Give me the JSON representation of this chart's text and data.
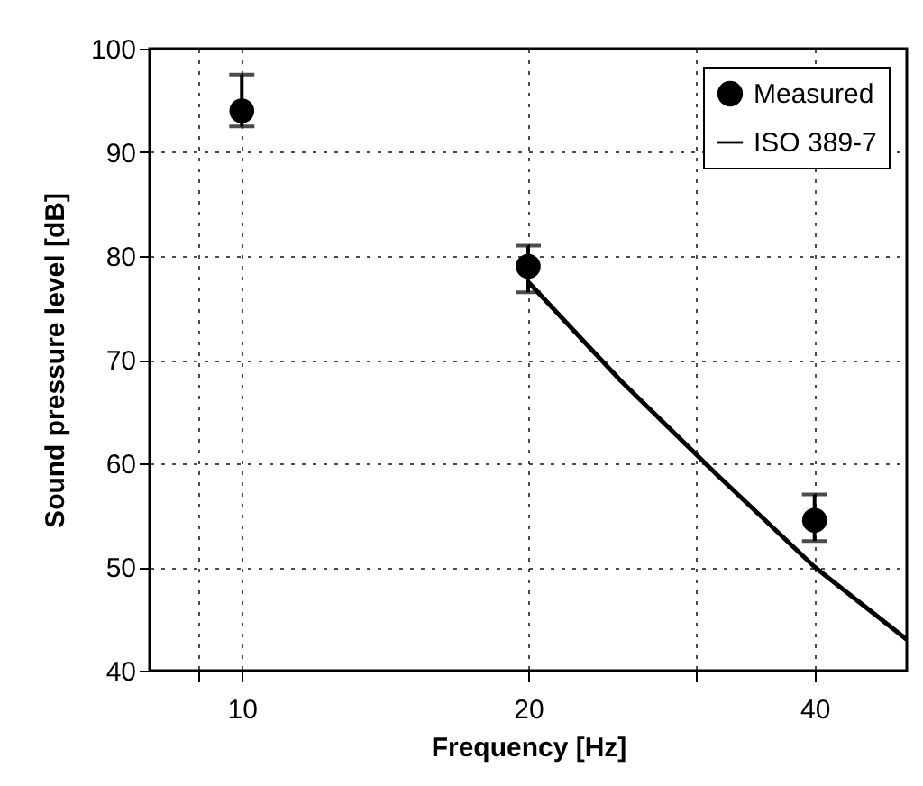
{
  "chart_data": {
    "type": "scatter",
    "xlabel": "Frequency [Hz]",
    "ylabel": "Sound pressure level [dB]",
    "log": "x",
    "xlim": [
      8,
      50
    ],
    "xticks": [
      {
        "value": 9,
        "label": null
      },
      10,
      20,
      {
        "value": 30,
        "label": null
      },
      40
    ],
    "ylim": [
      40,
      100
    ],
    "yticks": [
      40,
      50,
      60,
      70,
      80,
      90,
      100
    ],
    "grid": true,
    "legend": "top right",
    "series": [
      {
        "name": "Measured",
        "type": "scatter",
        "color": "#000000",
        "marker": "circle",
        "x": [
          10,
          20,
          40
        ],
        "values": [
          94,
          79,
          54.5
        ],
        "errors": [
          [
            92.5,
            97.5
          ],
          [
            76.5,
            81
          ],
          [
            52.5,
            57
          ]
        ]
      },
      {
        "name": "ISO 389-7",
        "type": "line",
        "color": "#000000",
        "line_style": "solid",
        "x": [
          20,
          25,
          31.5,
          40,
          50
        ],
        "values": [
          77.5,
          68,
          59,
          50,
          43
        ]
      }
    ]
  }
}
